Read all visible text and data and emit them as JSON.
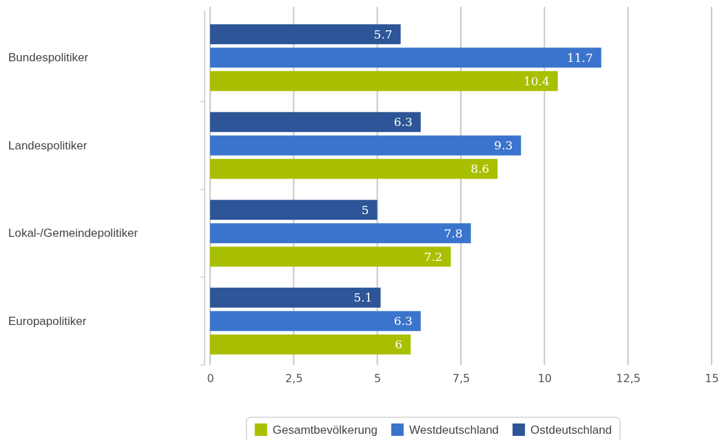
{
  "chart_data": {
    "type": "bar",
    "orientation": "horizontal",
    "categories": [
      "Bundespolitiker",
      "Landespolitiker",
      "Lokal-/Gemeindepolitiker",
      "Europapolitiker"
    ],
    "series": [
      {
        "name": "Gesamtbevölkerung",
        "color": "#a8c000",
        "values": [
          10.4,
          8.6,
          7.2,
          6
        ]
      },
      {
        "name": "Westdeutschland",
        "color": "#3b74cc",
        "values": [
          11.7,
          9.3,
          7.8,
          6.3
        ]
      },
      {
        "name": "Ostdeutschland",
        "color": "#2d5597",
        "values": [
          5.7,
          6.3,
          5,
          5.1
        ]
      }
    ],
    "xlim": [
      0,
      15
    ],
    "xticks": [
      0,
      {
        "value": 2.5,
        "label": "2,5"
      },
      5,
      {
        "value": 7.5,
        "label": "7,5"
      },
      10,
      {
        "value": 12.5,
        "label": "12,5"
      },
      15
    ],
    "grid": "x",
    "legend": "bottom",
    "data_labels": true
  }
}
